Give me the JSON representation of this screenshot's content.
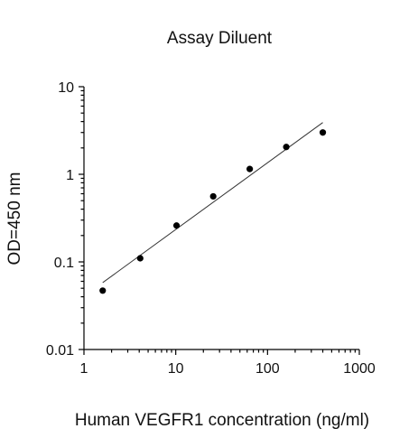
{
  "chart_data": {
    "type": "scatter",
    "title": "Assay Diluent",
    "xlabel": "Human VEGFR1 concentration (ng/ml)",
    "ylabel": "OD=450 nm",
    "x_scale": "log",
    "y_scale": "log",
    "xlim": [
      1,
      1000
    ],
    "ylim": [
      0.01,
      10
    ],
    "x_ticks": [
      {
        "value": 1,
        "label": "1"
      },
      {
        "value": 10,
        "label": "10"
      },
      {
        "value": 100,
        "label": "100"
      },
      {
        "value": 1000,
        "label": "1000"
      }
    ],
    "y_ticks": [
      {
        "value": 0.01,
        "label": "0.01"
      },
      {
        "value": 0.1,
        "label": "0.1"
      },
      {
        "value": 1,
        "label": "1"
      },
      {
        "value": 10,
        "label": "10"
      }
    ],
    "series": [
      {
        "x": [
          1.6,
          4.1,
          10.2,
          25.6,
          64,
          160,
          400
        ],
        "y": [
          0.047,
          0.11,
          0.26,
          0.56,
          1.15,
          2.05,
          3.0
        ],
        "marker": "filled-circle",
        "color": "#000000"
      }
    ],
    "fit_line": {
      "type": "linear-log-log",
      "x": [
        1.6,
        400
      ],
      "y": [
        0.058,
        3.9
      ],
      "color": "#333333"
    },
    "grid": false,
    "legend": "none",
    "minor_ticks": true
  }
}
